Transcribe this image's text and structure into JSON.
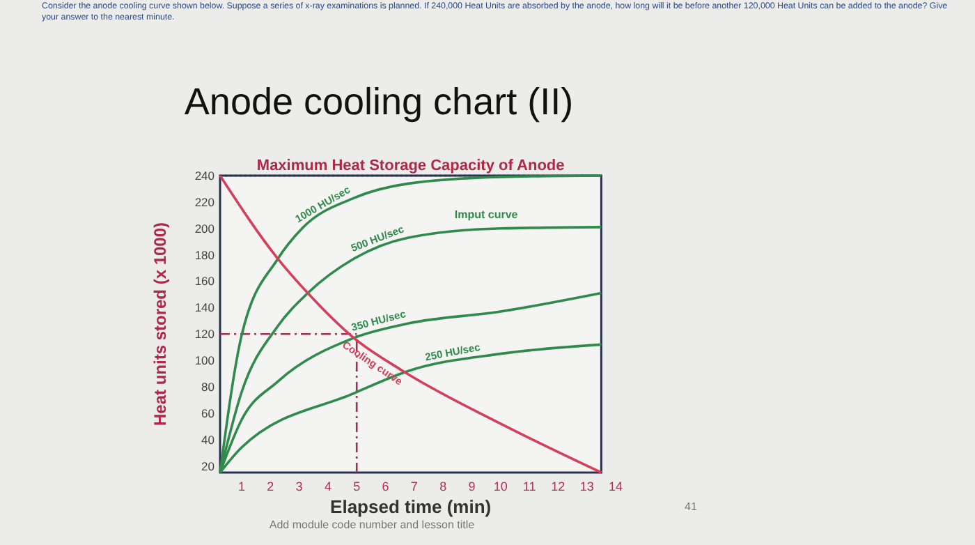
{
  "chart_data": {
    "type": "line",
    "title": "Anode cooling chart (II)",
    "xlabel": "Elapsed time (min)",
    "ylabel": "Heat units stored (x 1000)",
    "xlim": [
      0.25,
      14
    ],
    "ylim": [
      15,
      240
    ],
    "xticks": [
      1,
      2,
      3,
      4,
      5,
      6,
      7,
      8,
      9,
      10,
      11,
      12,
      13,
      14
    ],
    "yticks": [
      20,
      40,
      60,
      80,
      100,
      120,
      140,
      160,
      180,
      200,
      220,
      240
    ],
    "marker": "none",
    "line_style": "solid",
    "series": [
      {
        "name": "1000 HU/sec",
        "color": "#2f8a4c",
        "x": [
          0.25,
          1,
          2.26,
          3.1,
          4.9,
          6.8,
          10,
          13.5
        ],
        "values": [
          15,
          119,
          177,
          200,
          223,
          234,
          239,
          240
        ]
      },
      {
        "name": "500 HU/sec",
        "color": "#2f8a4c",
        "x": [
          0.25,
          1,
          2.26,
          3.3,
          4.9,
          6.8,
          10,
          13.5
        ],
        "values": [
          15,
          76,
          126,
          151,
          177,
          193,
          200,
          201
        ]
      },
      {
        "name": "350 HU/sec",
        "color": "#2f8a4c",
        "x": [
          0.25,
          1,
          2.26,
          4.9,
          6.8,
          10,
          13.5
        ],
        "values": [
          15,
          55,
          84,
          117,
          128,
          137,
          151
        ]
      },
      {
        "name": "250 HU/sec",
        "color": "#2f8a4c",
        "x": [
          0.25,
          1,
          4.9,
          6.8,
          10,
          13.5
        ],
        "values": [
          15,
          34,
          75,
          92,
          105,
          112
        ]
      },
      {
        "name": "Cooling curve",
        "color": "#d2405c",
        "x": [
          0.25,
          2.26,
          3.3,
          4.9,
          6.6,
          10,
          13.5
        ],
        "values": [
          240,
          177,
          151,
          117,
          92,
          52,
          15
        ]
      }
    ],
    "ref_lines": [
      {
        "axis": "y",
        "value": 240,
        "label": "Maximum Heat Storage Capacity of Anode",
        "color": "#2a3050",
        "line_style": "dotted"
      },
      {
        "axis": "y",
        "value": 120,
        "color": "#a03050",
        "line_style": "dashdot"
      },
      {
        "axis": "x",
        "value": 5,
        "color": "#a03050",
        "line_style": "dashdot"
      }
    ],
    "annotations": [
      "Consider the anode cooling curve shown below. Suppose a series of x-ray examinations is planned. If 240,000 Heat Units are absorbed by the anode, how long will it be before another 120,000 Heat Units can be added to the anode? Give your answer to the nearest minute.",
      "Imput curve",
      "Add module code number and lesson title",
      "41"
    ]
  }
}
